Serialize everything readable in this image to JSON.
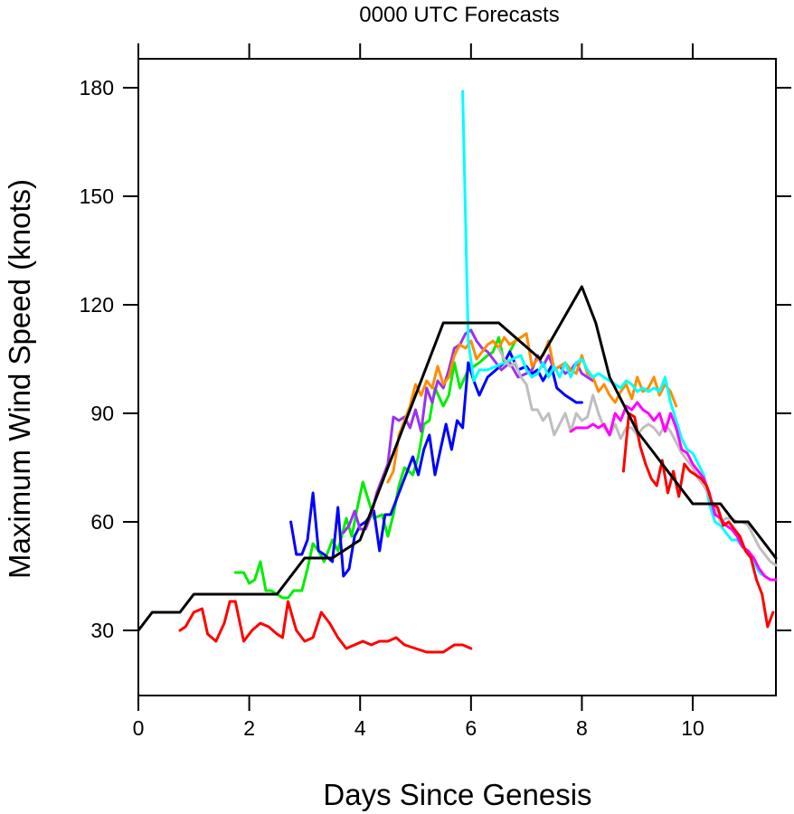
{
  "chart_data": {
    "type": "line",
    "title": "0000 UTC Forecasts",
    "xlabel": "Days Since Genesis",
    "ylabel": "Maximum Wind Speed (knots)",
    "xlim": [
      0,
      11.5
    ],
    "ylim": [
      12,
      188
    ],
    "xticks": [
      0,
      2,
      4,
      6,
      8,
      10
    ],
    "yticks": [
      30,
      60,
      90,
      120,
      150,
      180
    ],
    "grid": false,
    "legend": "none",
    "series": [
      {
        "color": "#ff0000",
        "x": [
          0.75,
          0.85,
          1.0,
          1.15,
          1.25,
          1.4,
          1.55,
          1.65,
          1.75,
          1.9,
          2.05,
          2.2,
          2.35,
          2.5,
          2.6,
          2.7,
          2.85,
          3.0,
          3.15,
          3.3,
          3.45,
          3.6,
          3.75,
          3.9,
          4.05,
          4.2,
          4.35,
          4.5,
          4.65,
          4.8,
          5.0,
          5.2,
          5.35,
          5.5,
          5.7,
          5.85,
          6.0
        ],
        "y": [
          30,
          31,
          35,
          36,
          29,
          27,
          32,
          38,
          38,
          27,
          30,
          32,
          31,
          29,
          28,
          38,
          30,
          27,
          28,
          35,
          32,
          28,
          25,
          26,
          27,
          26,
          27,
          27,
          28,
          26,
          25,
          24,
          24,
          24,
          26,
          26,
          25
        ]
      },
      {
        "color": "#00ee00",
        "x": [
          1.75,
          1.9,
          2.0,
          2.1,
          2.2,
          2.3,
          2.4,
          2.5,
          2.6,
          2.7,
          2.8,
          2.95,
          3.05,
          3.15,
          3.25,
          3.35,
          3.5,
          3.6,
          3.75,
          3.85,
          3.95,
          4.05,
          4.15,
          4.25,
          4.4,
          4.5,
          4.6,
          4.7,
          4.8,
          4.95,
          5.05,
          5.15,
          5.25,
          5.35,
          5.5,
          5.6,
          5.7,
          5.8,
          5.95,
          6.05,
          6.15,
          6.3,
          6.4,
          6.5,
          6.6,
          6.7,
          6.8,
          6.9,
          7.0
        ],
        "y": [
          46,
          46,
          43,
          44,
          49,
          41,
          41,
          40,
          39,
          39,
          41,
          41,
          47,
          54,
          52,
          49,
          55,
          52,
          61,
          56,
          64,
          71,
          66,
          61,
          62,
          56,
          62,
          70,
          75,
          73,
          78,
          87,
          88,
          97,
          92,
          95,
          104,
          97,
          102,
          103,
          104,
          106,
          107,
          111,
          104,
          107,
          110,
          111,
          112
        ]
      },
      {
        "color": "#0000ff",
        "x": [
          2.75,
          2.85,
          2.95,
          3.05,
          3.15,
          3.25,
          3.35,
          3.5,
          3.6,
          3.7,
          3.8,
          3.9,
          4.0,
          4.1,
          4.25,
          4.35,
          4.45,
          4.55,
          4.65,
          4.8,
          4.95,
          5.05,
          5.15,
          5.25,
          5.35,
          5.45,
          5.55,
          5.65,
          5.75,
          5.85,
          5.95,
          6.05,
          6.15,
          6.3,
          6.45,
          6.6,
          6.7,
          6.85,
          7.0,
          7.1,
          7.2,
          7.3,
          7.45,
          7.55,
          7.7,
          7.8,
          7.9,
          8.0
        ],
        "y": [
          60,
          51,
          51,
          55,
          68,
          52,
          51,
          49,
          64,
          45,
          47,
          56,
          59,
          60,
          63,
          52,
          62,
          62,
          66,
          72,
          78,
          73,
          80,
          84,
          73,
          80,
          87,
          80,
          88,
          86,
          104,
          99,
          95,
          100,
          102,
          104,
          107,
          102,
          103,
          101,
          102,
          99,
          103,
          97,
          95,
          94,
          93,
          93
        ]
      },
      {
        "color": "#9a32f0",
        "x": [
          3.7,
          3.8,
          3.9,
          4.0,
          4.1,
          4.2,
          4.3,
          4.4,
          4.5,
          4.6,
          4.7,
          4.8,
          4.9,
          5.0,
          5.1,
          5.2,
          5.3,
          5.4,
          5.5,
          5.6,
          5.7,
          5.8,
          5.9,
          6.0,
          6.1,
          6.2,
          6.3,
          6.4,
          6.55,
          6.7,
          6.85,
          7.0,
          7.1,
          7.2,
          7.3,
          7.4,
          7.5,
          7.6,
          7.7,
          7.8,
          7.9,
          8.0,
          8.1,
          8.2
        ],
        "y": [
          57,
          59,
          63,
          58,
          58,
          62,
          68,
          72,
          76,
          89,
          88,
          89,
          86,
          91,
          85,
          97,
          93,
          99,
          97,
          102,
          108,
          109,
          112,
          113,
          110,
          108,
          107,
          105,
          102,
          104,
          100,
          101,
          102,
          106,
          103,
          106,
          102,
          103,
          101,
          102,
          104,
          101,
          100,
          99
        ]
      },
      {
        "color": "#ff8c00",
        "x": [
          4.5,
          4.6,
          4.7,
          4.8,
          4.9,
          5.0,
          5.1,
          5.2,
          5.3,
          5.4,
          5.5,
          5.6,
          5.7,
          5.8,
          5.9,
          6.0,
          6.1,
          6.2,
          6.3,
          6.4,
          6.5,
          6.6,
          6.7,
          6.8,
          6.9,
          7.0,
          7.1,
          7.2,
          7.3,
          7.4,
          7.5,
          7.6,
          7.7,
          7.8,
          7.9,
          8.0,
          8.1,
          8.2,
          8.3,
          8.4,
          8.5,
          8.6,
          8.7,
          8.8,
          8.9,
          9.0,
          9.1,
          9.2,
          9.3,
          9.4,
          9.5,
          9.6,
          9.7
        ],
        "y": [
          71,
          74,
          84,
          88,
          92,
          98,
          95,
          99,
          97,
          103,
          98,
          100,
          106,
          109,
          108,
          110,
          105,
          107,
          109,
          110,
          108,
          111,
          109,
          110,
          111,
          112,
          103,
          105,
          106,
          110,
          102,
          103,
          104,
          102,
          101,
          106,
          101,
          100,
          96,
          98,
          95,
          93,
          96,
          98,
          94,
          100,
          96,
          97,
          100,
          95,
          98,
          96,
          92
        ]
      },
      {
        "color": "#00ffff",
        "x": [
          5.85,
          5.95,
          6.05,
          6.15,
          6.3,
          6.45,
          6.6,
          6.75,
          6.9,
          7.0,
          7.1,
          7.2,
          7.3,
          7.4,
          7.5,
          7.6,
          7.7,
          7.8,
          7.9,
          8.0,
          8.1,
          8.2,
          8.3,
          8.4,
          8.5,
          8.6,
          8.7,
          8.8,
          8.9,
          9.0,
          9.1,
          9.2,
          9.3,
          9.4,
          9.5,
          9.6,
          9.7,
          9.8,
          9.9,
          10.0,
          10.1,
          10.2,
          10.3,
          10.4,
          10.5,
          10.6,
          10.7,
          10.8,
          10.9,
          11.0,
          11.1,
          11.2,
          11.3,
          11.4,
          11.5
        ],
        "y": [
          179,
          110,
          99,
          102,
          102,
          103,
          104,
          105,
          106,
          102,
          100,
          101,
          104,
          100,
          103,
          100,
          104,
          100,
          104,
          105,
          102,
          100,
          101,
          100,
          99,
          98,
          97,
          99,
          98,
          96,
          97,
          96,
          97,
          96,
          100,
          93,
          88,
          83,
          80,
          79,
          76,
          73,
          65,
          60,
          59,
          57,
          55,
          55,
          53,
          52,
          49,
          46,
          45,
          44,
          44
        ]
      },
      {
        "color": "#bebebe",
        "x": [
          6.5,
          6.6,
          6.7,
          6.8,
          6.9,
          7.0,
          7.1,
          7.2,
          7.3,
          7.4,
          7.5,
          7.6,
          7.7,
          7.8,
          7.9,
          8.0,
          8.1,
          8.2,
          8.3,
          8.4,
          8.5,
          8.6,
          8.7,
          8.8,
          8.9,
          9.0,
          9.1,
          9.2,
          9.3,
          9.4,
          9.5,
          9.6,
          9.7,
          9.8,
          9.9,
          10.0,
          10.1,
          10.2,
          10.3,
          10.4,
          10.5,
          10.6,
          10.7,
          10.8,
          10.9,
          11.0,
          11.1,
          11.2,
          11.3,
          11.4,
          11.5
        ],
        "y": [
          108,
          105,
          103,
          104,
          100,
          98,
          91,
          91,
          88,
          90,
          84,
          87,
          90,
          85,
          90,
          88,
          89,
          95,
          90,
          86,
          84,
          87,
          83,
          86,
          86,
          84,
          86,
          87,
          86,
          84,
          87,
          85,
          82,
          79,
          77,
          75,
          72,
          70,
          67,
          64,
          60,
          61,
          61,
          60,
          60,
          59,
          56,
          53,
          51,
          49,
          48
        ]
      },
      {
        "color": "#ff00ff",
        "x": [
          7.8,
          7.9,
          8.0,
          8.1,
          8.2,
          8.3,
          8.4,
          8.5,
          8.6,
          8.7,
          8.8,
          8.9,
          9.0,
          9.1,
          9.2,
          9.3,
          9.4,
          9.5,
          9.6,
          9.7,
          9.8,
          9.9,
          10.0,
          10.1,
          10.2,
          10.3,
          10.4,
          10.5,
          10.6,
          10.7,
          10.8,
          10.9,
          11.0,
          11.1,
          11.2,
          11.3,
          11.4,
          11.5
        ],
        "y": [
          85,
          86,
          86,
          86,
          87,
          86,
          87,
          84,
          90,
          88,
          92,
          91,
          93,
          91,
          90,
          88,
          90,
          85,
          90,
          86,
          80,
          79,
          76,
          74,
          72,
          68,
          62,
          61,
          59,
          58,
          56,
          53,
          52,
          50,
          47,
          45,
          44,
          44
        ]
      },
      {
        "color": "#ff0000",
        "x": [
          8.75,
          8.85,
          8.95,
          9.05,
          9.15,
          9.25,
          9.35,
          9.45,
          9.55,
          9.65,
          9.75,
          9.85,
          9.95,
          10.05,
          10.15,
          10.25,
          10.35,
          10.45,
          10.55,
          10.65,
          10.75,
          10.85,
          10.95,
          11.05,
          11.15,
          11.25,
          11.35,
          11.45
        ],
        "y": [
          74,
          90,
          89,
          81,
          76,
          72,
          70,
          77,
          68,
          74,
          67,
          76,
          74,
          73,
          72,
          70,
          65,
          64,
          59,
          60,
          58,
          56,
          52,
          50,
          44,
          40,
          31,
          35
        ]
      },
      {
        "color": "#000000",
        "x": [
          0,
          0.25,
          0.75,
          1.0,
          2.5,
          3.0,
          3.5,
          4.0,
          5.5,
          6.5,
          7.25,
          8.0,
          8.25,
          8.5,
          9.0,
          9.25,
          9.5,
          9.75,
          10.0,
          10.25,
          10.5,
          10.75,
          11.0,
          11.25,
          11.5
        ],
        "y": [
          30,
          35,
          35,
          40,
          40,
          50,
          50,
          55,
          115,
          115,
          105,
          125,
          115,
          100,
          85,
          80,
          75,
          70,
          65,
          65,
          65,
          60,
          60,
          55,
          50
        ]
      }
    ]
  }
}
